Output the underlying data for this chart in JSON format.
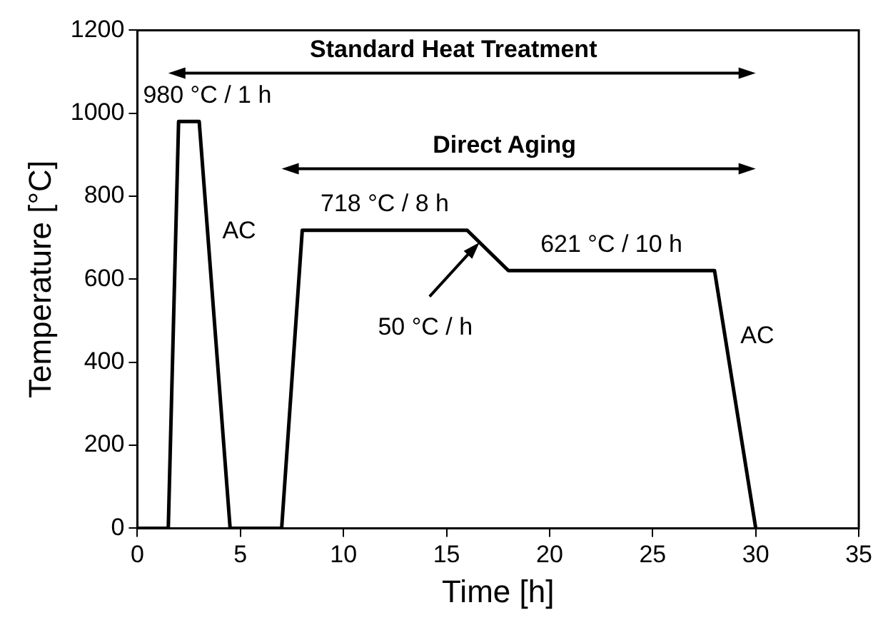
{
  "chart_data": {
    "type": "line",
    "xlabel": "Time [h]",
    "ylabel": "Temperature [°C]",
    "x": [
      0,
      1.5,
      2,
      3,
      4.5,
      7,
      8,
      16,
      18,
      28,
      30
    ],
    "series": [
      {
        "color": "#000000",
        "values": [
          0,
          0,
          980,
          980,
          0,
          0,
          718,
          718,
          621,
          621,
          0
        ]
      }
    ],
    "xlim": [
      0,
      35
    ],
    "xticks": [
      0,
      5,
      10,
      15,
      20,
      25,
      30,
      35
    ],
    "ylim": [
      0,
      1200
    ],
    "yticks": [
      0,
      200,
      400,
      600,
      800,
      1000,
      1200
    ],
    "grid": false,
    "legend": false,
    "marker": "none",
    "line_style": "solid",
    "annotations": [
      "Standard Heat Treatment",
      "Direct Aging",
      "980 °C / 1 h",
      "AC",
      "718 °C / 8 h",
      {
        "text": "50 °C / h",
        "x": 16.6,
        "y": 689
      },
      "621 °C / 10 h",
      "AC"
    ]
  }
}
